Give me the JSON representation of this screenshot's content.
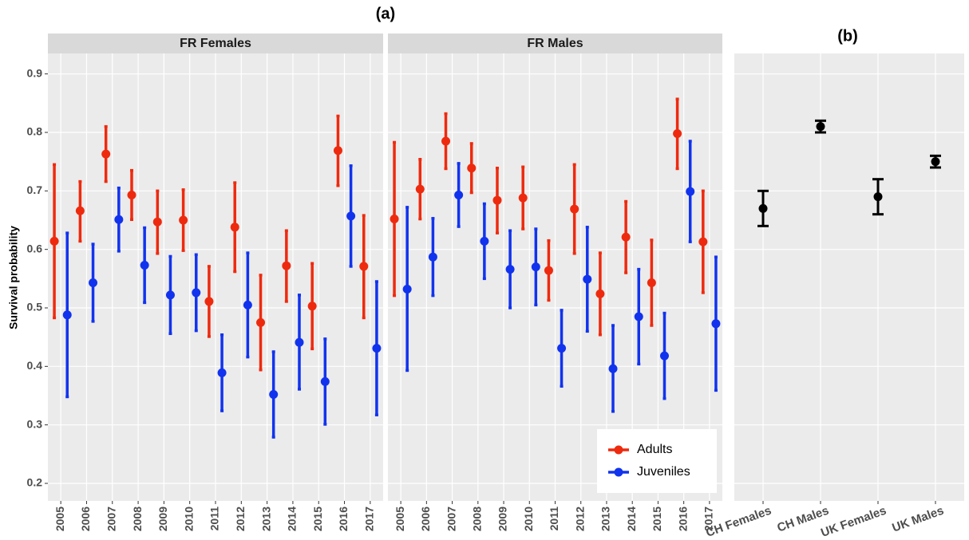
{
  "chart_data": [
    {
      "type": "errorbar",
      "title": "(a)",
      "y_label": "Survival probability",
      "categories": [
        "2005",
        "2006",
        "2007",
        "2008",
        "2009",
        "2010",
        "2011",
        "2012",
        "2013",
        "2014",
        "2015",
        "2016",
        "2017"
      ],
      "ylim": [
        0.17,
        0.935
      ],
      "yticks": [
        0.2,
        0.3,
        0.4,
        0.5,
        0.6,
        0.7,
        0.8,
        0.9
      ],
      "grid": true,
      "legend": "bottom-right",
      "facets": [
        {
          "title": "FR Females",
          "series": [
            {
              "name": "Adults",
              "color": "#ee2a0e",
              "values": [
                0.614,
                0.666,
                0.763,
                0.693,
                0.647,
                0.65,
                0.511,
                0.638,
                0.475,
                0.572,
                0.503,
                0.769,
                0.571
              ],
              "lower": [
                0.483,
                0.614,
                0.716,
                0.651,
                0.593,
                0.598,
                0.451,
                0.562,
                0.394,
                0.511,
                0.43,
                0.709,
                0.483
              ],
              "upper": [
                0.745,
                0.716,
                0.81,
                0.735,
                0.7,
                0.702,
                0.571,
                0.714,
                0.556,
                0.632,
                0.576,
                0.828,
                0.658
              ]
            },
            {
              "name": "Juveniles",
              "color": "#1133ee",
              "values": [
                0.488,
                0.543,
                0.651,
                0.573,
                0.522,
                0.526,
                0.389,
                0.505,
                0.352,
                0.441,
                0.374,
                0.657,
                0.431
              ],
              "lower": [
                0.348,
                0.477,
                0.597,
                0.509,
                0.456,
                0.461,
                0.324,
                0.416,
                0.279,
                0.361,
                0.301,
                0.571,
                0.317
              ],
              "upper": [
                0.628,
                0.609,
                0.705,
                0.637,
                0.588,
                0.591,
                0.454,
                0.594,
                0.425,
                0.522,
                0.447,
                0.743,
                0.545
              ]
            }
          ]
        },
        {
          "title": "FR Males",
          "series": [
            {
              "name": "Adults",
              "color": "#ee2a0e",
              "values": [
                0.652,
                0.703,
                0.785,
                0.739,
                0.684,
                0.688,
                0.564,
                0.669,
                0.524,
                0.621,
                0.543,
                0.798,
                0.613
              ],
              "lower": [
                0.521,
                0.652,
                0.738,
                0.697,
                0.628,
                0.635,
                0.513,
                0.593,
                0.454,
                0.56,
                0.47,
                0.738,
                0.526
              ],
              "upper": [
                0.783,
                0.754,
                0.832,
                0.781,
                0.739,
                0.741,
                0.615,
                0.745,
                0.594,
                0.682,
                0.616,
                0.857,
                0.7
              ]
            },
            {
              "name": "Juveniles",
              "color": "#1133ee",
              "values": [
                0.532,
                0.587,
                0.693,
                0.614,
                0.566,
                0.57,
                0.431,
                0.549,
                0.396,
                0.485,
                0.418,
                0.699,
                0.473
              ],
              "lower": [
                0.393,
                0.521,
                0.639,
                0.55,
                0.5,
                0.505,
                0.366,
                0.46,
                0.323,
                0.404,
                0.345,
                0.613,
                0.359
              ],
              "upper": [
                0.672,
                0.653,
                0.747,
                0.678,
                0.632,
                0.635,
                0.496,
                0.638,
                0.47,
                0.566,
                0.491,
                0.785,
                0.587
              ]
            }
          ]
        }
      ]
    },
    {
      "type": "errorbar",
      "title": "(b)",
      "categories": [
        "CH Females",
        "CH Males",
        "UK Females",
        "UK Males"
      ],
      "ylim": [
        0.17,
        0.935
      ],
      "yticks": [
        0.2,
        0.3,
        0.4,
        0.5,
        0.6,
        0.7,
        0.8,
        0.9
      ],
      "grid": true,
      "series": [
        {
          "color": "#000000",
          "values": [
            0.67,
            0.81,
            0.69,
            0.75
          ],
          "lower": [
            0.64,
            0.8,
            0.66,
            0.74
          ],
          "upper": [
            0.7,
            0.82,
            0.72,
            0.76
          ]
        }
      ]
    }
  ]
}
